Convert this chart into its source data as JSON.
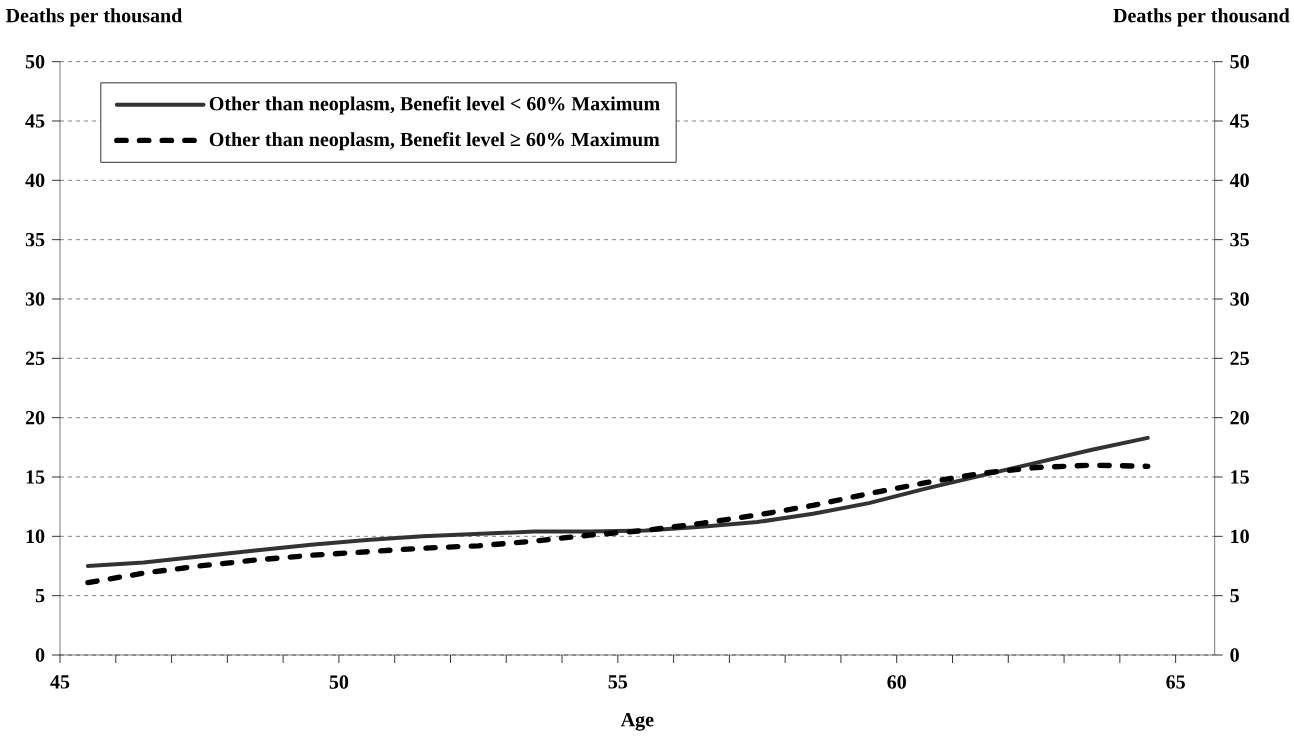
{
  "chart_data": {
    "type": "line",
    "xlabel": "Age",
    "ylabel": "Deaths per thousand",
    "y2label": "Deaths per thousand",
    "x": [
      45.5,
      46.5,
      47.5,
      48.5,
      49.5,
      50.5,
      51.5,
      52.5,
      53.5,
      54.5,
      55.5,
      56.5,
      57.5,
      58.5,
      59.5,
      60.5,
      61.5,
      62.5,
      63.5,
      64.5
    ],
    "series": [
      {
        "name": "Other than neoplasm, Benefit level < 60% Maximum",
        "color": "#333333",
        "line_style": "solid",
        "values": [
          7.5,
          7.8,
          8.3,
          8.8,
          9.3,
          9.7,
          10.0,
          10.2,
          10.4,
          10.4,
          10.5,
          10.8,
          11.2,
          11.9,
          12.8,
          14.0,
          15.1,
          16.2,
          17.3,
          18.3
        ]
      },
      {
        "name": "Other than neoplasm, Benefit level ≥ 60% Maximum",
        "color": "#000000",
        "line_style": "dashed",
        "values": [
          6.1,
          6.9,
          7.5,
          8.0,
          8.4,
          8.7,
          9.0,
          9.2,
          9.6,
          10.1,
          10.5,
          11.1,
          11.8,
          12.6,
          13.6,
          14.5,
          15.3,
          15.8,
          16.0,
          15.9
        ]
      }
    ],
    "xlim": [
      45,
      65.7
    ],
    "ylim": [
      0,
      50
    ],
    "y2lim": [
      0,
      50
    ],
    "xticks": [
      45,
      {
        "value": 46,
        "label": null
      },
      {
        "value": 47,
        "label": null
      },
      {
        "value": 48,
        "label": null
      },
      {
        "value": 49,
        "label": null
      },
      50,
      {
        "value": 51,
        "label": null
      },
      {
        "value": 52,
        "label": null
      },
      {
        "value": 53,
        "label": null
      },
      {
        "value": 54,
        "label": null
      },
      55,
      {
        "value": 56,
        "label": null
      },
      {
        "value": 57,
        "label": null
      },
      {
        "value": 58,
        "label": null
      },
      {
        "value": 59,
        "label": null
      },
      60,
      {
        "value": 61,
        "label": null
      },
      {
        "value": 62,
        "label": null
      },
      {
        "value": 63,
        "label": null
      },
      {
        "value": 64,
        "label": null
      },
      65
    ],
    "yticks": [
      0,
      5,
      10,
      15,
      20,
      25,
      30,
      35,
      40,
      45,
      50
    ],
    "y2ticks": [
      0,
      5,
      10,
      15,
      20,
      25,
      30,
      35,
      40,
      45,
      50
    ],
    "grid": "y",
    "legend": "top left",
    "marker": "none"
  }
}
